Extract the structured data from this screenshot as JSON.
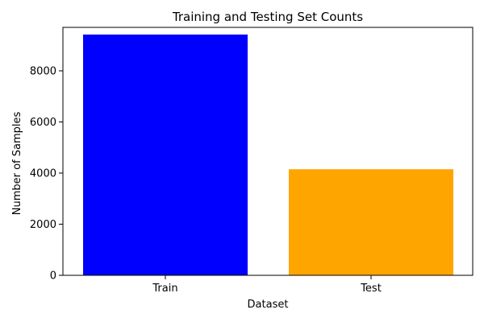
{
  "chart_data": {
    "type": "bar",
    "title": "Training and Testing Set Counts",
    "xlabel": "Dataset",
    "ylabel": "Number of Samples",
    "categories": [
      "Train",
      "Test"
    ],
    "values": [
      9420,
      4150
    ],
    "colors": [
      "#0000ff",
      "#ffa500"
    ],
    "ylim": [
      0,
      9700
    ],
    "yticks": [
      0,
      2000,
      4000,
      6000,
      8000
    ],
    "grid": false,
    "legend": "none"
  }
}
